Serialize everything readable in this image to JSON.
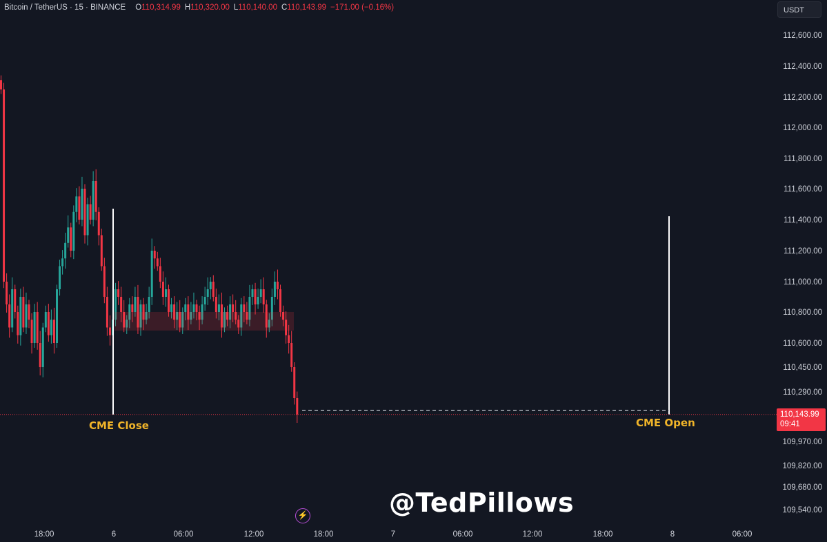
{
  "header": {
    "symbol": "Bitcoin / TetherUS · 15 · BINANCE",
    "open_label": "O",
    "open": "110,314.99",
    "high_label": "H",
    "high": "110,320.00",
    "low_label": "L",
    "low": "110,140.00",
    "close_label": "C",
    "close": "110,143.99",
    "change": "−171.00 (−0.16%)"
  },
  "currency": "USDT",
  "price_tag": {
    "price": "110,143.99",
    "countdown": "09:41"
  },
  "watermark": "@TedPillows",
  "colors": {
    "background": "#131722",
    "up": "#26a69a",
    "down": "#f23645",
    "annotation": "#f0b429",
    "marker_line": "#ffffff"
  },
  "chart_data": {
    "type": "candlestick",
    "y_ticks": [
      {
        "value": 112600,
        "label": "112,600.00"
      },
      {
        "value": 112400,
        "label": "112,400.00"
      },
      {
        "value": 112200,
        "label": "112,200.00"
      },
      {
        "value": 112000,
        "label": "112,000.00"
      },
      {
        "value": 111800,
        "label": "111,800.00"
      },
      {
        "value": 111600,
        "label": "111,600.00"
      },
      {
        "value": 111400,
        "label": "111,400.00"
      },
      {
        "value": 111200,
        "label": "111,200.00"
      },
      {
        "value": 111000,
        "label": "111,000.00"
      },
      {
        "value": 110800,
        "label": "110,800.00"
      },
      {
        "value": 110600,
        "label": "110,600.00"
      },
      {
        "value": 110450,
        "label": "110,450.00"
      },
      {
        "value": 110290,
        "label": "110,290.00"
      },
      {
        "value": 109970,
        "label": "109,970.00"
      },
      {
        "value": 109820,
        "label": "109,820.00"
      },
      {
        "value": 109680,
        "label": "109,680.00"
      },
      {
        "value": 109540,
        "label": "109,540.00"
      }
    ],
    "x_ticks": [
      "18:00",
      "6",
      "06:00",
      "12:00",
      "18:00",
      "7",
      "06:00",
      "12:00",
      "18:00",
      "8",
      "06:00"
    ],
    "last_price": 110143.99,
    "gap_level": 110170,
    "annotations": [
      {
        "label": "CME Close",
        "x_index": 0
      },
      {
        "label": "CME Open",
        "x_index": 1
      }
    ],
    "candles_close": [
      112250,
      111000,
      110850,
      110700,
      110950,
      110800,
      110650,
      110900,
      110700,
      110850,
      110750,
      110600,
      110800,
      110600,
      110450,
      110700,
      110800,
      110650,
      110750,
      110600,
      110950,
      111100,
      111150,
      111250,
      111350,
      111200,
      111450,
      111550,
      111400,
      111600,
      111300,
      111500,
      111400,
      111650,
      111450,
      111300,
      111100,
      110900,
      110700,
      110650,
      110750,
      110950,
      110900,
      110800,
      110700,
      110750,
      110850,
      110800,
      110900,
      110700,
      110850,
      110750,
      110800,
      110900,
      111200,
      111150,
      111100,
      111000,
      110900,
      110950,
      110800,
      110850,
      110750,
      110800,
      110700,
      110800,
      110850,
      110750,
      110800,
      110850,
      110800,
      110750,
      110850,
      110900,
      110950,
      111000,
      110900,
      110800,
      110850,
      110700,
      110800,
      110750,
      110850,
      110800,
      110750,
      110700,
      110850,
      110800,
      110750,
      110900,
      110950,
      110850,
      110900,
      110950,
      110850,
      110700,
      110750,
      110900,
      111000,
      110950,
      110800,
      110750,
      110650,
      110600,
      110450,
      110250,
      110143.99
    ]
  }
}
